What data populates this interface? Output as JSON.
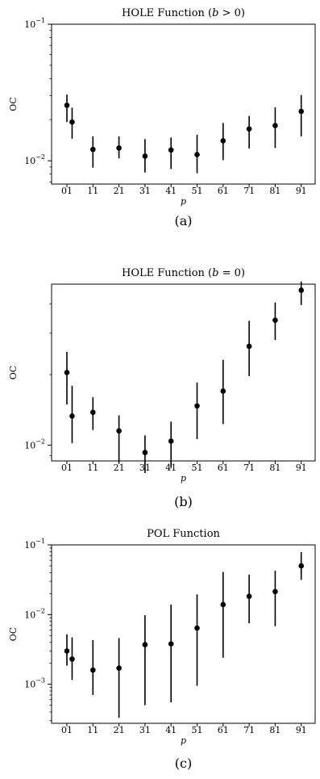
{
  "chart_data": [
    {
      "type": "scatter",
      "title": "HOLE Function (b > 0)",
      "title_parts": [
        "HOLE Function (",
        "b",
        " > 0)"
      ],
      "xlabel": "p",
      "ylabel": "OC",
      "caption": "(a)",
      "yscale": "log",
      "ylim": [
        0.00675,
        0.1
      ],
      "y_ticks": [
        {
          "value": 0.1,
          "base": "10",
          "exp": "−1"
        },
        {
          "value": 0.01,
          "base": "10",
          "exp": "−2"
        }
      ],
      "categories": [
        "01",
        "11",
        "21",
        "31",
        "41",
        "51",
        "61",
        "71",
        "81",
        "91"
      ],
      "points": [
        {
          "x": 1,
          "y": 0.0255,
          "ylo": 0.0192,
          "yhi": 0.0305
        },
        {
          "x": 3,
          "y": 0.0192,
          "ylo": 0.0145,
          "yhi": 0.0245
        },
        {
          "x": 11,
          "y": 0.0121,
          "ylo": 0.0089,
          "yhi": 0.0151
        },
        {
          "x": 21,
          "y": 0.0124,
          "ylo": 0.0104,
          "yhi": 0.0151
        },
        {
          "x": 31,
          "y": 0.0108,
          "ylo": 0.0082,
          "yhi": 0.0144
        },
        {
          "x": 41,
          "y": 0.012,
          "ylo": 0.0087,
          "yhi": 0.0148
        },
        {
          "x": 51,
          "y": 0.0111,
          "ylo": 0.0081,
          "yhi": 0.0155
        },
        {
          "x": 61,
          "y": 0.014,
          "ylo": 0.0101,
          "yhi": 0.0189
        },
        {
          "x": 71,
          "y": 0.0171,
          "ylo": 0.0123,
          "yhi": 0.0213
        },
        {
          "x": 81,
          "y": 0.0181,
          "ylo": 0.0124,
          "yhi": 0.0246
        },
        {
          "x": 91,
          "y": 0.023,
          "ylo": 0.0151,
          "yhi": 0.0303
        }
      ],
      "color": "#000000"
    },
    {
      "type": "scatter",
      "title": "HOLE Function (b = 0)",
      "title_parts": [
        "HOLE Function (",
        "b",
        " = 0)"
      ],
      "xlabel": "p",
      "ylabel": "OC",
      "caption": "(b)",
      "yscale": "log",
      "ylim": [
        0.00856,
        0.0486
      ],
      "y_ticks": [
        {
          "value": 0.01,
          "base": "10",
          "exp": "−2"
        }
      ],
      "categories": [
        "01",
        "11",
        "21",
        "31",
        "41",
        "51",
        "61",
        "71",
        "81",
        "91"
      ],
      "points": [
        {
          "x": 1,
          "y": 0.0204,
          "ylo": 0.0149,
          "yhi": 0.025
        },
        {
          "x": 3,
          "y": 0.0133,
          "ylo": 0.0102,
          "yhi": 0.0179
        },
        {
          "x": 11,
          "y": 0.0138,
          "ylo": 0.0116,
          "yhi": 0.016
        },
        {
          "x": 21,
          "y": 0.0115,
          "ylo": 0.0084,
          "yhi": 0.0134
        },
        {
          "x": 31,
          "y": 0.0093,
          "ylo": 0.0076,
          "yhi": 0.011
        },
        {
          "x": 41,
          "y": 0.0104,
          "ylo": 0.008,
          "yhi": 0.0126
        },
        {
          "x": 51,
          "y": 0.0147,
          "ylo": 0.0106,
          "yhi": 0.0185
        },
        {
          "x": 61,
          "y": 0.017,
          "ylo": 0.0123,
          "yhi": 0.0231
        },
        {
          "x": 71,
          "y": 0.0264,
          "ylo": 0.0197,
          "yhi": 0.0339
        },
        {
          "x": 81,
          "y": 0.0341,
          "ylo": 0.0281,
          "yhi": 0.0406
        },
        {
          "x": 91,
          "y": 0.0458,
          "ylo": 0.0396,
          "yhi": 0.0499
        }
      ],
      "color": "#000000"
    },
    {
      "type": "scatter",
      "title": "POL Function",
      "title_parts": [
        "POL Function",
        "",
        ""
      ],
      "xlabel": "p",
      "ylabel": "OC",
      "caption": "(c)",
      "yscale": "log",
      "ylim": [
        0.000275,
        0.1
      ],
      "y_ticks": [
        {
          "value": 0.1,
          "base": "10",
          "exp": "−1"
        },
        {
          "value": 0.01,
          "base": "10",
          "exp": "−2"
        },
        {
          "value": 0.001,
          "base": "10",
          "exp": "−3"
        }
      ],
      "categories": [
        "01",
        "11",
        "21",
        "31",
        "41",
        "51",
        "61",
        "71",
        "81",
        "91"
      ],
      "points": [
        {
          "x": 1,
          "y": 0.003,
          "ylo": 0.00185,
          "yhi": 0.0052
        },
        {
          "x": 3,
          "y": 0.0023,
          "ylo": 0.00115,
          "yhi": 0.0047
        },
        {
          "x": 11,
          "y": 0.0016,
          "ylo": 0.0007,
          "yhi": 0.0043
        },
        {
          "x": 21,
          "y": 0.0017,
          "ylo": 0.00033,
          "yhi": 0.0046
        },
        {
          "x": 31,
          "y": 0.0037,
          "ylo": 0.0005,
          "yhi": 0.0098
        },
        {
          "x": 41,
          "y": 0.0038,
          "ylo": 0.00055,
          "yhi": 0.0139
        },
        {
          "x": 51,
          "y": 0.0064,
          "ylo": 0.00095,
          "yhi": 0.0195
        },
        {
          "x": 61,
          "y": 0.0139,
          "ylo": 0.0024,
          "yhi": 0.041
        },
        {
          "x": 71,
          "y": 0.0183,
          "ylo": 0.0075,
          "yhi": 0.0375
        },
        {
          "x": 81,
          "y": 0.0214,
          "ylo": 0.0068,
          "yhi": 0.0425
        },
        {
          "x": 91,
          "y": 0.05,
          "ylo": 0.0315,
          "yhi": 0.079
        }
      ],
      "color": "#000000"
    }
  ]
}
